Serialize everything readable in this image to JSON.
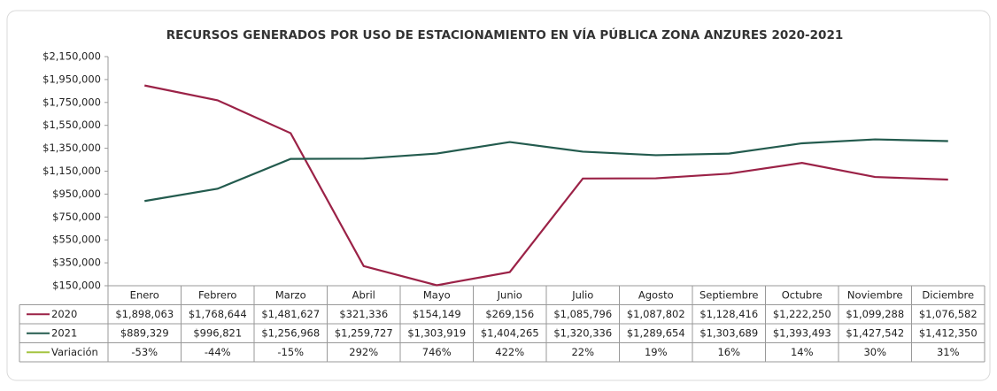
{
  "chart_data": {
    "type": "line",
    "title": "RECURSOS GENERADOS POR USO DE ESTACIONAMIENTO EN VÍA PÚBLICA ZONA ANZURES 2020-2021",
    "categories": [
      "Enero",
      "Febrero",
      "Marzo",
      "Abril",
      "Mayo",
      "Junio",
      "Julio",
      "Agosto",
      "Septiembre",
      "Octubre",
      "Noviembre",
      "Diciembre"
    ],
    "series": [
      {
        "name": "2020",
        "color": "#9b2247",
        "values": [
          1898063,
          1768644,
          1481627,
          321336,
          154149,
          269156,
          1085796,
          1087802,
          1128416,
          1222250,
          1099288,
          1076582
        ],
        "value_labels": [
          "$1,898,063",
          "$1,768,644",
          "$1,481,627",
          "$321,336",
          "$154,149",
          "$269,156",
          "$1,085,796",
          "$1,087,802",
          "$1,128,416",
          "$1,222,250",
          "$1,099,288",
          "$1,076,582"
        ]
      },
      {
        "name": "2021",
        "color": "#235b4e",
        "values": [
          889329,
          996821,
          1256968,
          1259727,
          1303919,
          1404265,
          1320336,
          1289654,
          1303689,
          1393493,
          1427542,
          1412350
        ],
        "value_labels": [
          "$889,329",
          "$996,821",
          "$1,256,968",
          "$1,259,727",
          "$1,303,919",
          "$1,404,265",
          "$1,320,336",
          "$1,289,654",
          "$1,303,689",
          "$1,393,493",
          "$1,427,542",
          "$1,412,350"
        ]
      },
      {
        "name": "Variación",
        "color": "#a4c441",
        "table_only": true,
        "values": [
          -53,
          -44,
          -15,
          292,
          746,
          422,
          22,
          19,
          16,
          14,
          30,
          31
        ],
        "value_labels": [
          "-53%",
          "-44%",
          "-15%",
          "292%",
          "746%",
          "422%",
          "22%",
          "19%",
          "16%",
          "14%",
          "30%",
          "31%"
        ]
      }
    ],
    "ylim": [
      150000,
      2150000
    ],
    "yticks": [
      {
        "value": 150000,
        "label": "$150,000"
      },
      {
        "value": 350000,
        "label": "$350,000"
      },
      {
        "value": 550000,
        "label": "$550,000"
      },
      {
        "value": 750000,
        "label": "$750,000"
      },
      {
        "value": 950000,
        "label": "$950,000"
      },
      {
        "value": 1150000,
        "label": "$1,150,000"
      },
      {
        "value": 1350000,
        "label": "$1,350,000"
      },
      {
        "value": 1550000,
        "label": "$1,550,000"
      },
      {
        "value": 1750000,
        "label": "$1,750,000"
      },
      {
        "value": 1950000,
        "label": "$1,950,000"
      },
      {
        "value": 2150000,
        "label": "$2,150,000"
      }
    ],
    "grid": false
  }
}
